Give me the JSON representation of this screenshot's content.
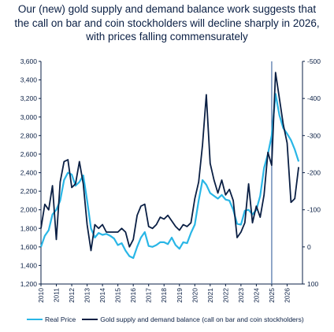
{
  "chart_data": {
    "type": "line",
    "title_lines": [
      "Our (new) gold supply and demand balance work suggests that",
      "the call on bar and coin stockholders will decline sharply in 2026,",
      "with prices falling commensurately"
    ],
    "x_tick_labels": [
      "2010",
      "2011",
      "2012",
      "2013",
      "2014",
      "2015",
      "2016",
      "2017",
      "2018",
      "2019",
      "2020",
      "2021",
      "2022",
      "2023",
      "2024",
      "2025",
      "2026"
    ],
    "x_range": [
      2010,
      2027
    ],
    "y_left": {
      "ticks": [
        "1,200",
        "1,400",
        "1,600",
        "1,800",
        "2,000",
        "2,200",
        "2,400",
        "2,600",
        "2,800",
        "3,000",
        "3,200",
        "3,400",
        "3,600"
      ],
      "range": [
        1200,
        3600
      ]
    },
    "y_right": {
      "ticks": [
        "-500",
        "-400",
        "-300",
        "-200",
        "-100",
        "0",
        "100"
      ],
      "range": [
        -500,
        100
      ],
      "inverted": true
    },
    "vertical_marker_x": 2025.0,
    "series": [
      {
        "name": "Real Price",
        "axis": "left",
        "color": "#29b6e6",
        "x": [
          2010.0,
          2010.25,
          2010.5,
          2010.75,
          2011.0,
          2011.25,
          2011.5,
          2011.75,
          2012.0,
          2012.25,
          2012.5,
          2012.75,
          2013.0,
          2013.25,
          2013.5,
          2013.75,
          2014.0,
          2014.25,
          2014.5,
          2014.75,
          2015.0,
          2015.25,
          2015.5,
          2015.75,
          2016.0,
          2016.25,
          2016.5,
          2016.75,
          2017.0,
          2017.25,
          2017.5,
          2017.75,
          2018.0,
          2018.25,
          2018.5,
          2018.75,
          2019.0,
          2019.25,
          2019.5,
          2019.75,
          2020.0,
          2020.25,
          2020.5,
          2020.75,
          2021.0,
          2021.25,
          2021.5,
          2021.75,
          2022.0,
          2022.25,
          2022.5,
          2022.75,
          2023.0,
          2023.25,
          2023.5,
          2023.75,
          2024.0,
          2024.25,
          2024.5,
          2024.75,
          2025.0,
          2025.25,
          2025.5,
          2025.75,
          2026.0,
          2026.25,
          2026.5,
          2026.75
        ],
        "values": [
          1600,
          1720,
          1780,
          1950,
          2000,
          2100,
          2320,
          2400,
          2380,
          2260,
          2300,
          2370,
          2100,
          1800,
          1700,
          1750,
          1730,
          1740,
          1720,
          1690,
          1620,
          1640,
          1560,
          1500,
          1480,
          1600,
          1700,
          1760,
          1610,
          1600,
          1620,
          1650,
          1650,
          1630,
          1700,
          1620,
          1580,
          1650,
          1640,
          1750,
          1840,
          2100,
          2320,
          2270,
          2180,
          2150,
          2120,
          2160,
          2110,
          2100,
          2000,
          1850,
          1840,
          1990,
          2000,
          1950,
          2000,
          2150,
          2450,
          2600,
          2800,
          3250,
          3020,
          2880,
          2820,
          2750,
          2650,
          2520
        ]
      },
      {
        "name": "Gold supply and demand balance (call on bar and coin stockholders)",
        "axis": "right",
        "color": "#0a1f44",
        "x": [
          2010.0,
          2010.25,
          2010.5,
          2010.75,
          2011.0,
          2011.25,
          2011.5,
          2011.75,
          2012.0,
          2012.25,
          2012.5,
          2012.75,
          2013.0,
          2013.25,
          2013.5,
          2013.75,
          2014.0,
          2014.25,
          2014.5,
          2014.75,
          2015.0,
          2015.25,
          2015.5,
          2015.75,
          2016.0,
          2016.25,
          2016.5,
          2016.75,
          2017.0,
          2017.25,
          2017.5,
          2017.75,
          2018.0,
          2018.25,
          2018.5,
          2018.75,
          2019.0,
          2019.25,
          2019.5,
          2019.75,
          2020.0,
          2020.25,
          2020.5,
          2020.75,
          2021.0,
          2021.25,
          2021.5,
          2021.75,
          2022.0,
          2022.25,
          2022.5,
          2022.75,
          2023.0,
          2023.25,
          2023.5,
          2023.75,
          2024.0,
          2024.25,
          2024.5,
          2024.75,
          2025.0,
          2025.25,
          2025.5,
          2025.75,
          2026.0,
          2026.25,
          2026.5,
          2026.75
        ],
        "values": [
          -50,
          -115,
          -100,
          -165,
          -20,
          -175,
          -230,
          -235,
          -160,
          -170,
          -230,
          -170,
          -60,
          10,
          -60,
          -50,
          -60,
          -40,
          -40,
          -40,
          -40,
          -50,
          -40,
          0,
          -20,
          -85,
          -110,
          -115,
          -55,
          -50,
          -60,
          -80,
          -75,
          -85,
          -70,
          -55,
          -45,
          -60,
          -55,
          -65,
          -130,
          -175,
          -275,
          -410,
          -225,
          -180,
          -145,
          -180,
          -140,
          -155,
          -125,
          -25,
          -40,
          -65,
          -170,
          -65,
          -110,
          -80,
          -140,
          -255,
          -220,
          -470,
          -400,
          -330,
          -280,
          -120,
          -130,
          -215
        ]
      }
    ]
  }
}
